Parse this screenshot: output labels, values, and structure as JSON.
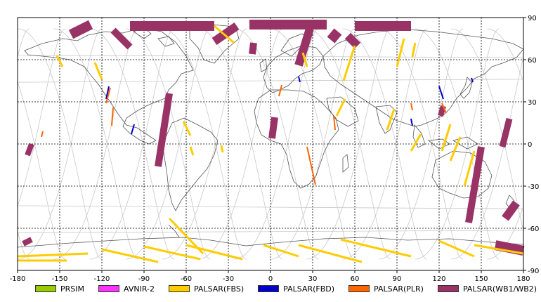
{
  "map": {
    "lon_range": [
      -180,
      180
    ],
    "lat_range": [
      -90,
      90
    ],
    "lon_ticks": [
      -180,
      -150,
      -120,
      -90,
      -60,
      -30,
      0,
      30,
      60,
      90,
      120,
      150,
      180
    ],
    "lat_ticks": [
      90,
      60,
      30,
      0,
      -30,
      -60,
      -90
    ],
    "grid": "dashed",
    "background": "#ffffff",
    "coastline_color": "#555555",
    "orbit_track_color": "#c8c8c8"
  },
  "legend": {
    "position": "bottom",
    "items": [
      {
        "label": "PRSIM",
        "color": "#99cc00"
      },
      {
        "label": "AVNIR-2",
        "color": "#ff33ff"
      },
      {
        "label": "PALSAR(FBS)",
        "color": "#ffcc00"
      },
      {
        "label": "PALSAR(FBD)",
        "color": "#0000cc"
      },
      {
        "label": "PALSAR(PLR)",
        "color": "#ff6600"
      },
      {
        "label": "PALSAR(WB1/WB2)",
        "color": "#993366"
      }
    ]
  },
  "swaths": [
    {
      "mode": "PALSAR(WB1/WB2)",
      "color": "#993366",
      "lon1": -112,
      "lat1": 81,
      "lon2": -100,
      "lat2": 69,
      "width": 10
    },
    {
      "mode": "PALSAR(WB1/WB2)",
      "color": "#993366",
      "lon1": -128,
      "lat1": 85,
      "lon2": -142,
      "lat2": 78,
      "width": 14
    },
    {
      "mode": "PALSAR(WB1/WB2)",
      "color": "#993366",
      "lon1": -100,
      "lat1": 84,
      "lon2": -40,
      "lat2": 84,
      "width": 14
    },
    {
      "mode": "PALSAR(WB1/WB2)",
      "color": "#993366",
      "lon1": -24,
      "lat1": 84,
      "lon2": -40,
      "lat2": 73,
      "width": 12
    },
    {
      "mode": "PALSAR(WB1/WB2)",
      "color": "#993366",
      "lon1": -15,
      "lat1": 85,
      "lon2": 40,
      "lat2": 85,
      "width": 14
    },
    {
      "mode": "PALSAR(WB1/WB2)",
      "color": "#993366",
      "lon1": -12,
      "lat1": 72,
      "lon2": -13,
      "lat2": 64,
      "width": 10
    },
    {
      "mode": "PALSAR(WB1/WB2)",
      "color": "#993366",
      "lon1": 28,
      "lat1": 82,
      "lon2": 20,
      "lat2": 56,
      "width": 12
    },
    {
      "mode": "PALSAR(WB1/WB2)",
      "color": "#993366",
      "lon1": 60,
      "lat1": 84,
      "lon2": 100,
      "lat2": 84,
      "width": 14
    },
    {
      "mode": "PALSAR(WB1/WB2)",
      "color": "#993366",
      "lon1": 48,
      "lat1": 80,
      "lon2": 43,
      "lat2": 74,
      "width": 14
    },
    {
      "mode": "PALSAR(WB1/WB2)",
      "color": "#993366",
      "lon1": 55,
      "lat1": 77,
      "lon2": 62,
      "lat2": 70,
      "width": 12
    },
    {
      "mode": "PALSAR(WB1/WB2)",
      "color": "#993366",
      "lon1": -72,
      "lat1": 36,
      "lon2": -80,
      "lat2": -16,
      "width": 10
    },
    {
      "mode": "PALSAR(WB1/WB2)",
      "color": "#993366",
      "lon1": 3,
      "lat1": 19,
      "lon2": 1,
      "lat2": 4,
      "width": 10
    },
    {
      "mode": "PALSAR(WB1/WB2)",
      "color": "#993366",
      "lon1": 123,
      "lat1": 27,
      "lon2": 121,
      "lat2": 20,
      "width": 8
    },
    {
      "mode": "PALSAR(WB1/WB2)",
      "color": "#993366",
      "lon1": 150,
      "lat1": -2,
      "lon2": 141,
      "lat2": -56,
      "width": 10
    },
    {
      "mode": "PALSAR(WB1/WB2)",
      "color": "#993366",
      "lon1": 170,
      "lat1": 18,
      "lon2": 165,
      "lat2": -2,
      "width": 9
    },
    {
      "mode": "PALSAR(WB1/WB2)",
      "color": "#993366",
      "lon1": 175,
      "lat1": -42,
      "lon2": 167,
      "lat2": -53,
      "width": 12
    },
    {
      "mode": "PALSAR(WB1/WB2)",
      "color": "#993366",
      "lon1": -170,
      "lat1": 0,
      "lon2": -173,
      "lat2": -8,
      "width": 8
    },
    {
      "mode": "PALSAR(WB1/WB2)",
      "color": "#993366",
      "lon1": -170,
      "lat1": -68,
      "lon2": -176,
      "lat2": -71,
      "width": 8
    },
    {
      "mode": "PALSAR(WB1/WB2)",
      "color": "#993366",
      "lon1": 160,
      "lat1": -72,
      "lon2": 180,
      "lat2": -76,
      "width": 14
    },
    {
      "mode": "PALSAR(FBS)",
      "color": "#ffcc00",
      "lon1": -152,
      "lat1": 63,
      "lon2": -148,
      "lat2": 55,
      "width": 3
    },
    {
      "mode": "PALSAR(FBS)",
      "color": "#ffcc00",
      "lon1": -125,
      "lat1": 58,
      "lon2": -120,
      "lat2": 46,
      "width": 3
    },
    {
      "mode": "PALSAR(FBS)",
      "color": "#ffcc00",
      "lon1": -40,
      "lat1": 84,
      "lon2": -26,
      "lat2": 72,
      "width": 3
    },
    {
      "mode": "PALSAR(FBS)",
      "color": "#ffcc00",
      "lon1": 23,
      "lat1": 65,
      "lon2": 26,
      "lat2": 55,
      "width": 3
    },
    {
      "mode": "PALSAR(FBS)",
      "color": "#ffcc00",
      "lon1": 53,
      "lat1": 32,
      "lon2": 47,
      "lat2": 20,
      "width": 3
    },
    {
      "mode": "PALSAR(FBS)",
      "color": "#ffcc00",
      "lon1": 103,
      "lat1": 72,
      "lon2": 101,
      "lat2": 62,
      "width": 3
    },
    {
      "mode": "PALSAR(FBS)",
      "color": "#ffcc00",
      "lon1": 60,
      "lat1": 70,
      "lon2": 52,
      "lat2": 45,
      "width": 3
    },
    {
      "mode": "PALSAR(FBS)",
      "color": "#ffcc00",
      "lon1": 95,
      "lat1": 75,
      "lon2": 90,
      "lat2": 55,
      "width": 3
    },
    {
      "mode": "PALSAR(FBS)",
      "color": "#ffcc00",
      "lon1": 88,
      "lat1": 25,
      "lon2": 83,
      "lat2": 10,
      "width": 3
    },
    {
      "mode": "PALSAR(FBS)",
      "color": "#ffcc00",
      "lon1": 107,
      "lat1": 7,
      "lon2": 100,
      "lat2": -5,
      "width": 3
    },
    {
      "mode": "PALSAR(FBS)",
      "color": "#ffcc00",
      "lon1": 128,
      "lat1": 14,
      "lon2": 122,
      "lat2": -5,
      "width": 3
    },
    {
      "mode": "PALSAR(FBS)",
      "color": "#ffcc00",
      "lon1": 135,
      "lat1": 5,
      "lon2": 128,
      "lat2": -12,
      "width": 3
    },
    {
      "mode": "PALSAR(FBS)",
      "color": "#ffcc00",
      "lon1": 145,
      "lat1": -5,
      "lon2": 138,
      "lat2": -30,
      "width": 3
    },
    {
      "mode": "PALSAR(FBS)",
      "color": "#ffcc00",
      "lon1": -62,
      "lat1": 16,
      "lon2": -57,
      "lat2": 6,
      "width": 3
    },
    {
      "mode": "PALSAR(FBS)",
      "color": "#ffcc00",
      "lon1": -57,
      "lat1": -2,
      "lon2": -55,
      "lat2": -8,
      "width": 3
    },
    {
      "mode": "PALSAR(FBS)",
      "color": "#ffcc00",
      "lon1": -35,
      "lat1": -1,
      "lon2": -34,
      "lat2": -6,
      "width": 3
    },
    {
      "mode": "PALSAR(FBS)",
      "color": "#ffcc00",
      "lon1": -72,
      "lat1": -53,
      "lon2": -48,
      "lat2": -78,
      "width": 3
    },
    {
      "mode": "PALSAR(FBS)",
      "color": "#ffcc00",
      "lon1": -90,
      "lat1": -73,
      "lon2": -50,
      "lat2": -82,
      "width": 3
    },
    {
      "mode": "PALSAR(FBS)",
      "color": "#ffcc00",
      "lon1": -120,
      "lat1": -75,
      "lon2": -80,
      "lat2": -84,
      "width": 3
    },
    {
      "mode": "PALSAR(FBS)",
      "color": "#ffcc00",
      "lon1": -60,
      "lat1": -72,
      "lon2": -20,
      "lat2": -82,
      "width": 3
    },
    {
      "mode": "PALSAR(FBS)",
      "color": "#ffcc00",
      "lon1": -5,
      "lat1": -72,
      "lon2": 20,
      "lat2": -80,
      "width": 3
    },
    {
      "mode": "PALSAR(FBS)",
      "color": "#ffcc00",
      "lon1": 20,
      "lat1": -72,
      "lon2": 65,
      "lat2": -84,
      "width": 3
    },
    {
      "mode": "PALSAR(FBS)",
      "color": "#ffcc00",
      "lon1": 50,
      "lat1": -68,
      "lon2": 100,
      "lat2": -80,
      "width": 3
    },
    {
      "mode": "PALSAR(FBS)",
      "color": "#ffcc00",
      "lon1": 120,
      "lat1": -69,
      "lon2": 145,
      "lat2": -80,
      "width": 3
    },
    {
      "mode": "PALSAR(FBS)",
      "color": "#ffcc00",
      "lon1": 145,
      "lat1": -72,
      "lon2": 180,
      "lat2": -78,
      "width": 3
    },
    {
      "mode": "PALSAR(FBS)",
      "color": "#ffcc00",
      "lon1": -180,
      "lat1": -80,
      "lon2": -130,
      "lat2": -78,
      "width": 3
    },
    {
      "mode": "PALSAR(FBS)",
      "color": "#ffcc00",
      "lon1": -180,
      "lat1": -83,
      "lon2": -145,
      "lat2": -83,
      "width": 3
    },
    {
      "mode": "PALSAR(FBD)",
      "color": "#0000cc",
      "lon1": -97,
      "lat1": 14,
      "lon2": -99,
      "lat2": 7,
      "width": 2
    },
    {
      "mode": "PALSAR(FBD)",
      "color": "#0000cc",
      "lon1": -115,
      "lat1": 41,
      "lon2": -117,
      "lat2": 32,
      "width": 2
    },
    {
      "mode": "PALSAR(FBD)",
      "color": "#0000cc",
      "lon1": 20,
      "lat1": 48,
      "lon2": 21,
      "lat2": 44,
      "width": 2
    },
    {
      "mode": "PALSAR(FBD)",
      "color": "#0000cc",
      "lon1": 120,
      "lat1": 41,
      "lon2": 123,
      "lat2": 32,
      "width": 2
    },
    {
      "mode": "PALSAR(FBD)",
      "color": "#0000cc",
      "lon1": 143,
      "lat1": 47,
      "lon2": 144,
      "lat2": 44,
      "width": 2
    },
    {
      "mode": "PALSAR(FBD)",
      "color": "#0000cc",
      "lon1": 100,
      "lat1": 18,
      "lon2": 101,
      "lat2": 13,
      "width": 2
    },
    {
      "mode": "PALSAR(PLR)",
      "color": "#ff6600",
      "lon1": -114,
      "lat1": 40,
      "lon2": -117,
      "lat2": 29,
      "width": 2
    },
    {
      "mode": "PALSAR(PLR)",
      "color": "#ff6600",
      "lon1": -112,
      "lat1": 26,
      "lon2": -113,
      "lat2": 13,
      "width": 2
    },
    {
      "mode": "PALSAR(PLR)",
      "color": "#ff6600",
      "lon1": 8,
      "lat1": 42,
      "lon2": 6,
      "lat2": 34,
      "width": 2
    },
    {
      "mode": "PALSAR(PLR)",
      "color": "#ff6600",
      "lon1": 26,
      "lat1": -2,
      "lon2": 32,
      "lat2": -29,
      "width": 2
    },
    {
      "mode": "PALSAR(PLR)",
      "color": "#ff6600",
      "lon1": 45,
      "lat1": 20,
      "lon2": 46,
      "lat2": 10,
      "width": 2
    },
    {
      "mode": "PALSAR(PLR)",
      "color": "#ff6600",
      "lon1": 100,
      "lat1": 29,
      "lon2": 101,
      "lat2": 24,
      "width": 2
    },
    {
      "mode": "PALSAR(PLR)",
      "color": "#ff6600",
      "lon1": 122,
      "lat1": 29,
      "lon2": 125,
      "lat2": 22,
      "width": 2
    },
    {
      "mode": "PALSAR(PLR)",
      "color": "#ff6600",
      "lon1": -162,
      "lat1": 9,
      "lon2": -163,
      "lat2": 5,
      "width": 2
    }
  ]
}
